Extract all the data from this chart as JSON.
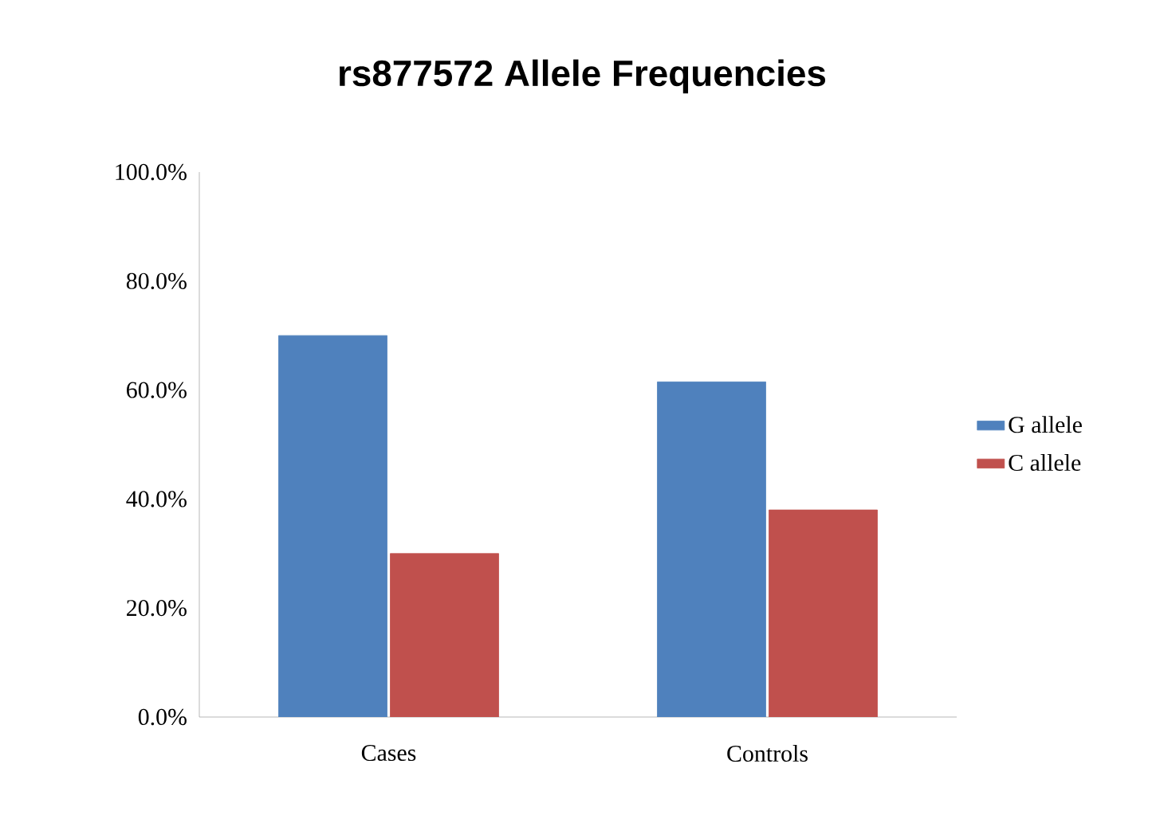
{
  "chart_data": {
    "type": "bar",
    "title": "rs877572 Allele Frequencies",
    "categories": [
      "Cases",
      "Controls"
    ],
    "series": [
      {
        "name": "G allele",
        "color": "#4f81bd",
        "values": [
          70,
          61.5
        ]
      },
      {
        "name": "C allele",
        "color": "#c0504d",
        "values": [
          30,
          38
        ]
      }
    ],
    "ylim": [
      0,
      100
    ],
    "yticks": [
      {
        "value": 0,
        "label": "0.0%"
      },
      {
        "value": 20,
        "label": "20.0%"
      },
      {
        "value": 40,
        "label": "40.0%"
      },
      {
        "value": 60,
        "label": "60.0%"
      },
      {
        "value": 80,
        "label": "80.0%"
      },
      {
        "value": 100,
        "label": "100.0%"
      }
    ],
    "grid": false,
    "legend": "right"
  }
}
